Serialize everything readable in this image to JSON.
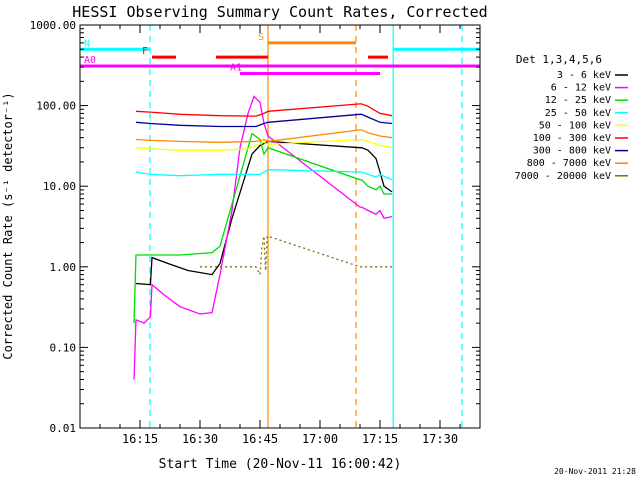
{
  "chart_data": {
    "type": "line",
    "title": "HESSI Observing Summary Count Rates, Corrected",
    "xlabel": "Start Time (20-Nov-11 16:00:42)",
    "ylabel": "Corrected Count Rate (s⁻¹ detector⁻¹)",
    "yscale": "log",
    "ylim": [
      0.01,
      1000
    ],
    "xlim_minutes": [
      0,
      100
    ],
    "x_ticks": [
      {
        "m": 15,
        "label": "16:15"
      },
      {
        "m": 30,
        "label": "16:30"
      },
      {
        "m": 45,
        "label": "16:45"
      },
      {
        "m": 60,
        "label": "17:00"
      },
      {
        "m": 75,
        "label": "17:15"
      },
      {
        "m": 90,
        "label": "17:30"
      }
    ],
    "y_ticks": [
      {
        "v": 0.01,
        "label": "0.01"
      },
      {
        "v": 0.1,
        "label": "0.10"
      },
      {
        "v": 1,
        "label": "1.00"
      },
      {
        "v": 10,
        "label": "10.00"
      },
      {
        "v": 100,
        "label": "100.00"
      },
      {
        "v": 1000,
        "label": "1000.00"
      }
    ],
    "legend_title": "Det 1,3,4,5,6",
    "legend_position": "right",
    "footer_timestamp": "20-Nov-2011 21:28",
    "series": [
      {
        "name": "3 - 6 keV",
        "color": "#000000",
        "points": [
          [
            14,
            0.62
          ],
          [
            17.6,
            0.6
          ],
          [
            18,
            1.3
          ],
          [
            22,
            1.1
          ],
          [
            27,
            0.9
          ],
          [
            33,
            0.8
          ],
          [
            35,
            1.1
          ],
          [
            38,
            4
          ],
          [
            41,
            12
          ],
          [
            43,
            25
          ],
          [
            45,
            32
          ],
          [
            47,
            36
          ],
          [
            70,
            30
          ],
          [
            70.4,
            30
          ],
          [
            72,
            28
          ],
          [
            74,
            22
          ],
          [
            75,
            15
          ],
          [
            76,
            10
          ],
          [
            78,
            8.5
          ]
        ]
      },
      {
        "name": "6 - 12 keV",
        "color": "#ff00ff",
        "points": [
          [
            13.5,
            0.04
          ],
          [
            14,
            0.22
          ],
          [
            16,
            0.2
          ],
          [
            17.6,
            0.24
          ],
          [
            18,
            0.6
          ],
          [
            21,
            0.45
          ],
          [
            25,
            0.32
          ],
          [
            30,
            0.26
          ],
          [
            33,
            0.27
          ],
          [
            35,
            0.8
          ],
          [
            38,
            5
          ],
          [
            40,
            30
          ],
          [
            42,
            80
          ],
          [
            43.5,
            130
          ],
          [
            45,
            110
          ],
          [
            46,
            60
          ],
          [
            47,
            42
          ],
          [
            70,
            5.5
          ],
          [
            70.4,
            5.5
          ],
          [
            72,
            5
          ],
          [
            74,
            4.5
          ],
          [
            75,
            5
          ],
          [
            76,
            4
          ],
          [
            78,
            4.2
          ]
        ]
      },
      {
        "name": "12 - 25 keV",
        "color": "#00dd00",
        "points": [
          [
            13.5,
            0.2
          ],
          [
            14,
            1.4
          ],
          [
            17.6,
            1.4
          ],
          [
            18,
            1.4
          ],
          [
            25,
            1.4
          ],
          [
            33,
            1.5
          ],
          [
            35,
            1.8
          ],
          [
            38,
            6
          ],
          [
            41,
            20
          ],
          [
            43,
            45
          ],
          [
            45,
            38
          ],
          [
            46,
            25
          ],
          [
            47,
            30
          ],
          [
            70,
            12
          ],
          [
            70.4,
            12
          ],
          [
            72,
            10
          ],
          [
            74,
            9
          ],
          [
            75,
            10
          ],
          [
            76,
            8
          ],
          [
            78,
            8
          ]
        ]
      },
      {
        "name": "25 - 50 keV",
        "color": "#00ffff",
        "points": [
          [
            14,
            15
          ],
          [
            17.6,
            14
          ],
          [
            25,
            13.5
          ],
          [
            35,
            14
          ],
          [
            45,
            14
          ],
          [
            47,
            16
          ],
          [
            70,
            15
          ],
          [
            70.4,
            15
          ],
          [
            72,
            14
          ],
          [
            74,
            13
          ],
          [
            75,
            14
          ],
          [
            78,
            12
          ]
        ]
      },
      {
        "name": "50 - 100 keV",
        "color": "#ffff00",
        "points": [
          [
            14,
            30
          ],
          [
            17.6,
            29
          ],
          [
            25,
            28
          ],
          [
            35,
            28
          ],
          [
            42,
            29
          ],
          [
            44,
            32
          ],
          [
            46,
            35
          ],
          [
            47,
            33
          ],
          [
            70,
            38
          ],
          [
            70.4,
            38
          ],
          [
            72,
            36
          ],
          [
            75,
            32
          ],
          [
            78,
            30
          ]
        ]
      },
      {
        "name": "100 - 300 keV",
        "color": "#ff0000",
        "points": [
          [
            14,
            85
          ],
          [
            17.6,
            83
          ],
          [
            25,
            78
          ],
          [
            35,
            75
          ],
          [
            44,
            74
          ],
          [
            46,
            80
          ],
          [
            47,
            85
          ],
          [
            70,
            105
          ],
          [
            70.4,
            105
          ],
          [
            72,
            98
          ],
          [
            75,
            80
          ],
          [
            78,
            75
          ]
        ]
      },
      {
        "name": "300 - 800 keV",
        "color": "#000099",
        "points": [
          [
            14,
            62
          ],
          [
            17.6,
            60
          ],
          [
            25,
            57
          ],
          [
            35,
            55
          ],
          [
            44,
            55
          ],
          [
            46,
            60
          ],
          [
            47,
            62
          ],
          [
            70,
            78
          ],
          [
            70.4,
            78
          ],
          [
            72,
            72
          ],
          [
            75,
            62
          ],
          [
            78,
            60
          ]
        ]
      },
      {
        "name": "800 - 7000 keV",
        "color": "#ff8800",
        "points": [
          [
            14,
            38
          ],
          [
            17.6,
            37
          ],
          [
            25,
            36
          ],
          [
            35,
            35
          ],
          [
            44,
            36
          ],
          [
            46,
            38
          ],
          [
            47,
            36
          ],
          [
            70,
            50
          ],
          [
            70.4,
            50
          ],
          [
            72,
            46
          ],
          [
            75,
            42
          ],
          [
            78,
            40
          ]
        ]
      },
      {
        "name": "7000 - 20000 keV",
        "color": "#886600",
        "points": [
          [
            30,
            1.0
          ],
          [
            44,
            1.0
          ],
          [
            45,
            0.8
          ],
          [
            45.5,
            1.8
          ],
          [
            46,
            2.4
          ],
          [
            46.4,
            0.9
          ],
          [
            46.8,
            2.4
          ],
          [
            47,
            2.4
          ],
          [
            70,
            1.0
          ],
          [
            70.4,
            1.0
          ],
          [
            78,
            1.0
          ]
        ]
      }
    ],
    "flag_bars": [
      {
        "label": "N",
        "color": "#00ffff",
        "y": 500,
        "segments": [
          [
            0,
            17.5
          ],
          [
            78.3,
            100
          ]
        ]
      },
      {
        "label": "F",
        "color": "#ff0000",
        "y": 400,
        "segments": [
          [
            18,
            24
          ],
          [
            34,
            47
          ],
          [
            72,
            77
          ]
        ]
      },
      {
        "label": "S",
        "color": "#ff8800",
        "y": 600,
        "segments": [
          [
            47,
            69
          ]
        ]
      },
      {
        "label": "A0",
        "color": "#ff00ff",
        "y": 310,
        "segments": [
          [
            0,
            100
          ]
        ]
      },
      {
        "label": "A1",
        "color": "#ff00ff",
        "y": 250,
        "segments": [
          [
            40,
            75
          ]
        ]
      }
    ],
    "vertical_lines": [
      {
        "m": 17.5,
        "color": "#00ffff",
        "style": "dashed"
      },
      {
        "m": 47.0,
        "color": "#ff8800",
        "style": "solid"
      },
      {
        "m": 69.0,
        "color": "#ff8800",
        "style": "dashed"
      },
      {
        "m": 78.3,
        "color": "#00ffff",
        "style": "solid"
      },
      {
        "m": 95.5,
        "color": "#00ffff",
        "style": "dashed"
      }
    ]
  }
}
